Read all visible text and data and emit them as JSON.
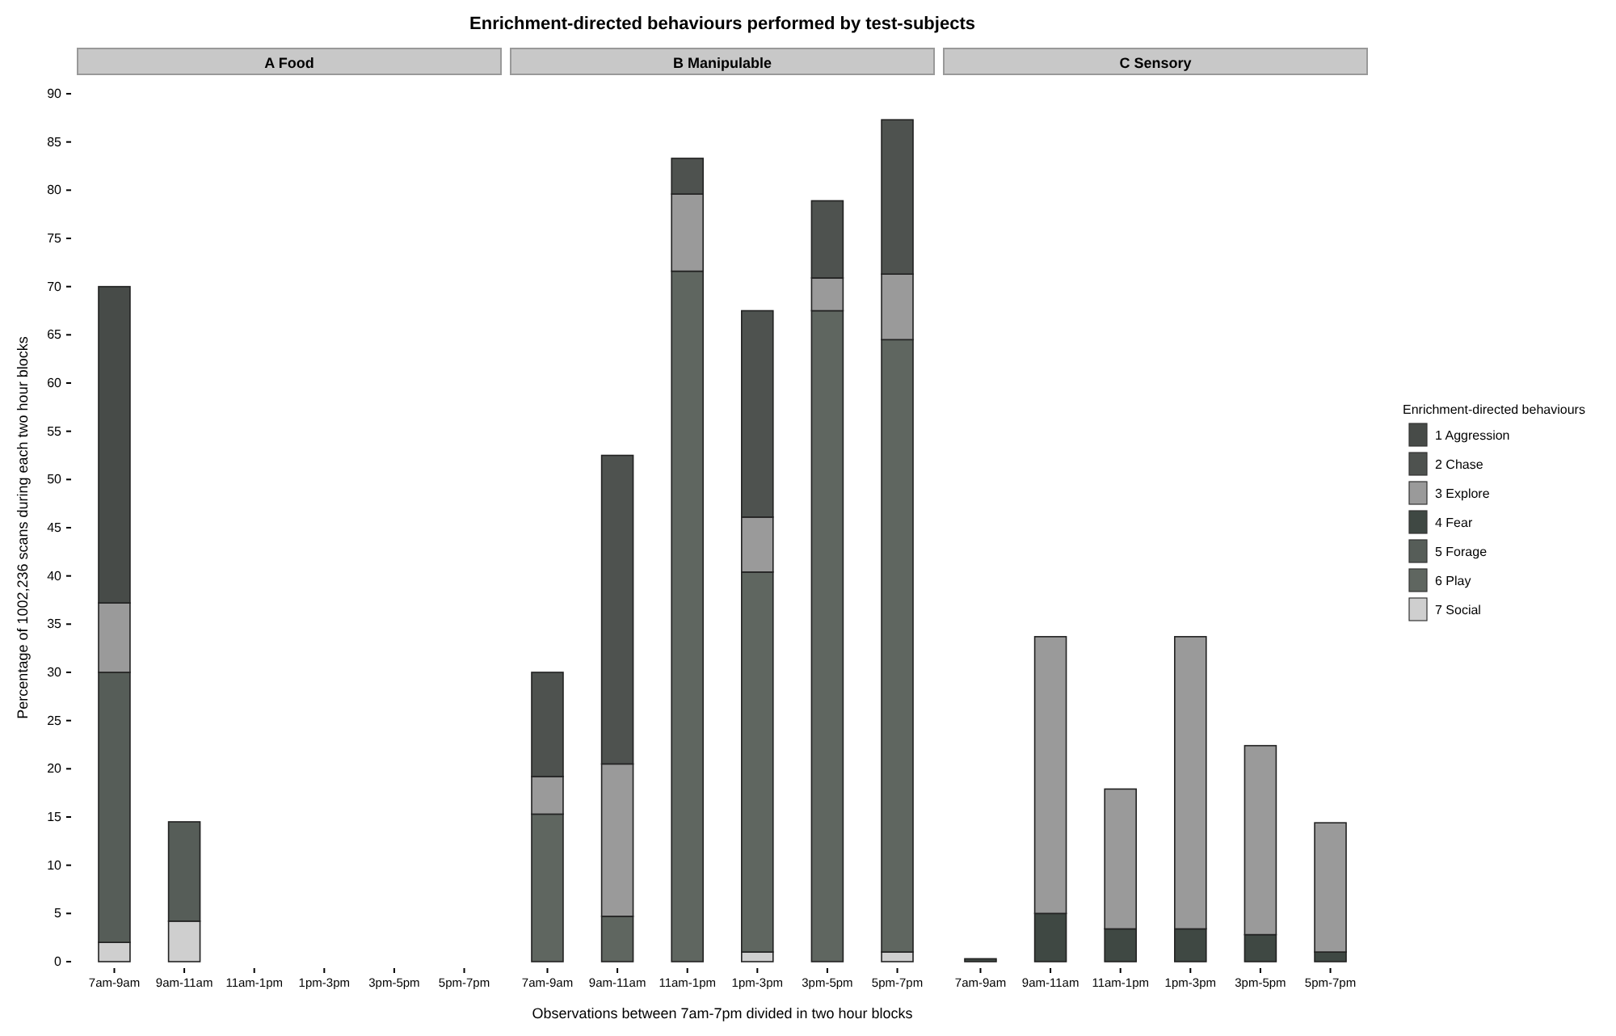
{
  "chart_data": [
    {
      "type": "bar",
      "title": "A Food",
      "ylabel": "Percentage of 1002,236 scans during each two hour blocks",
      "stacked": true,
      "categories": [
        "7am-9am",
        "9am-11am",
        "11am-1pm",
        "1pm-3pm",
        "3pm-5pm",
        "5pm-7pm"
      ],
      "ylim": [
        0,
        90
      ],
      "yticks": [
        0,
        5,
        10,
        15,
        20,
        25,
        30,
        35,
        40,
        45,
        50,
        55,
        60,
        65,
        70,
        75,
        80,
        85,
        90
      ],
      "series": [
        {
          "color": "#cfcfcf",
          "values": [
            2,
            4.2,
            null,
            null,
            null,
            null
          ]
        },
        {
          "color": "#565d58",
          "values": [
            28,
            10.3,
            null,
            null,
            null,
            null
          ]
        },
        {
          "color": "#9a9a9a",
          "values": [
            7.2,
            null,
            null,
            null,
            null,
            null
          ]
        },
        {
          "color": "#474b48",
          "values": [
            32.8,
            null,
            null,
            null,
            null,
            null
          ]
        }
      ]
    },
    {
      "type": "bar",
      "title": "B Manipulable",
      "xlabel": "Observations between 7am-7pm divided in two hour blocks",
      "annotations": [
        "Enrichment-directed behaviours performed by test-subjects"
      ],
      "stacked": true,
      "tick_labels": "x",
      "categories": [
        "7am-9am",
        "9am-11am",
        "11am-1pm",
        "1pm-3pm",
        "3pm-5pm",
        "5pm-7pm"
      ],
      "ylim": [
        0,
        90
      ],
      "yticks": [
        0,
        5,
        10,
        15,
        20,
        25,
        30,
        35,
        40,
        45,
        50,
        55,
        60,
        65,
        70,
        75,
        80,
        85,
        90
      ],
      "series": [
        {
          "color": "#cfcfcf",
          "values": [
            null,
            null,
            null,
            1,
            null,
            1
          ]
        },
        {
          "color": "#5f6660",
          "values": [
            15.3,
            4.7,
            71.6,
            39.4,
            67.5,
            63.5
          ]
        },
        {
          "color": "#9a9a9a",
          "values": [
            3.9,
            15.8,
            8,
            5.7,
            3.4,
            6.8
          ]
        },
        {
          "color": "#4e524f",
          "values": [
            10.8,
            32,
            3.7,
            21.4,
            8,
            16
          ]
        }
      ]
    },
    {
      "type": "bar",
      "title": "C Sensory",
      "legend_title": "Enrichment-directed behaviours",
      "legend": "right",
      "stacked": true,
      "tick_labels": "x",
      "categories": [
        "7am-9am",
        "9am-11am",
        "11am-1pm",
        "1pm-3pm",
        "3pm-5pm",
        "5pm-7pm"
      ],
      "ylim": [
        0,
        90
      ],
      "yticks": [
        0,
        5,
        10,
        15,
        20,
        25,
        30,
        35,
        40,
        45,
        50,
        55,
        60,
        65,
        70,
        75,
        80,
        85,
        90
      ],
      "series": [
        {
          "name": "7 Social",
          "color": "#cfcfcf",
          "values": [
            null,
            null,
            null,
            null,
            null,
            null
          ]
        },
        {
          "name": "6 Play",
          "color": "#5f6660",
          "values": [
            null,
            null,
            null,
            null,
            null,
            null
          ]
        },
        {
          "name": "5 Forage",
          "color": "#565d58",
          "values": [
            null,
            null,
            null,
            null,
            null,
            null
          ]
        },
        {
          "name": "4 Fear",
          "color": "#3f4843",
          "values": [
            0.3,
            5,
            3.4,
            3.4,
            2.8,
            1
          ]
        },
        {
          "name": "3 Explore",
          "color": "#9a9a9a",
          "values": [
            null,
            28.7,
            14.5,
            30.3,
            19.6,
            13.4
          ]
        },
        {
          "name": "2 Chase",
          "color": "#4e524f",
          "values": [
            null,
            null,
            null,
            null,
            null,
            null
          ]
        },
        {
          "name": "1 Aggression",
          "color": "#474b48",
          "values": [
            null,
            null,
            null,
            null,
            null,
            null
          ]
        }
      ]
    }
  ]
}
